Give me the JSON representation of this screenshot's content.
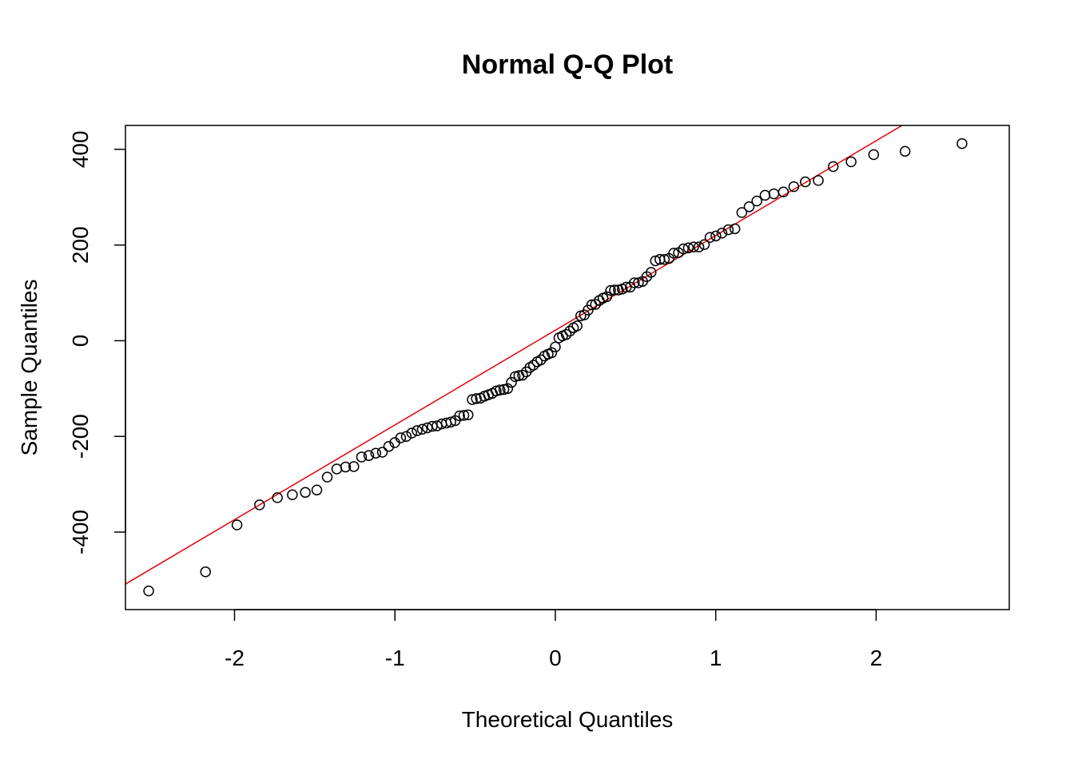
{
  "chart_data": {
    "type": "scatter",
    "title": "Normal Q-Q Plot",
    "xlabel": "Theoretical Quantiles",
    "ylabel": "Sample Quantiles",
    "xlim": [
      -2.68,
      2.83
    ],
    "ylim": [
      -562,
      450
    ],
    "x_ticks": [
      -2,
      -1,
      0,
      1,
      2
    ],
    "y_ticks": [
      -400,
      -200,
      0,
      200,
      400
    ],
    "grid": false,
    "point_style": "open-circle",
    "colors": {
      "points": "#000000",
      "qq_line": "#e8000b"
    },
    "qq_line": {
      "intercept": 22,
      "slope": 198
    },
    "sample_quantiles": [
      -523,
      -483,
      -385,
      -343,
      -328,
      -322,
      -317,
      -312,
      -285,
      -268,
      -264,
      -263,
      -243,
      -240,
      -235,
      -233,
      -221,
      -213,
      -203,
      -200,
      -193,
      -188,
      -185,
      -182,
      -179,
      -178,
      -174,
      -172,
      -170,
      -167,
      -157,
      -156,
      -155,
      -123,
      -121,
      -120,
      -116,
      -113,
      -110,
      -105,
      -103,
      -102,
      -100,
      -87,
      -75,
      -73,
      -72,
      -65,
      -56,
      -51,
      -44,
      -40,
      -32,
      -28,
      -25,
      -13,
      6,
      10,
      13,
      20,
      27,
      31,
      52,
      54,
      64,
      75,
      76,
      84,
      89,
      92,
      105,
      106,
      106,
      108,
      112,
      112,
      121,
      121,
      124,
      134,
      143,
      167,
      170,
      170,
      172,
      183,
      184,
      192,
      194,
      196,
      196,
      201,
      216,
      219,
      225,
      232,
      234,
      268,
      280,
      292,
      304,
      307,
      311,
      322,
      332,
      335,
      364,
      374,
      389,
      396,
      412
    ]
  }
}
